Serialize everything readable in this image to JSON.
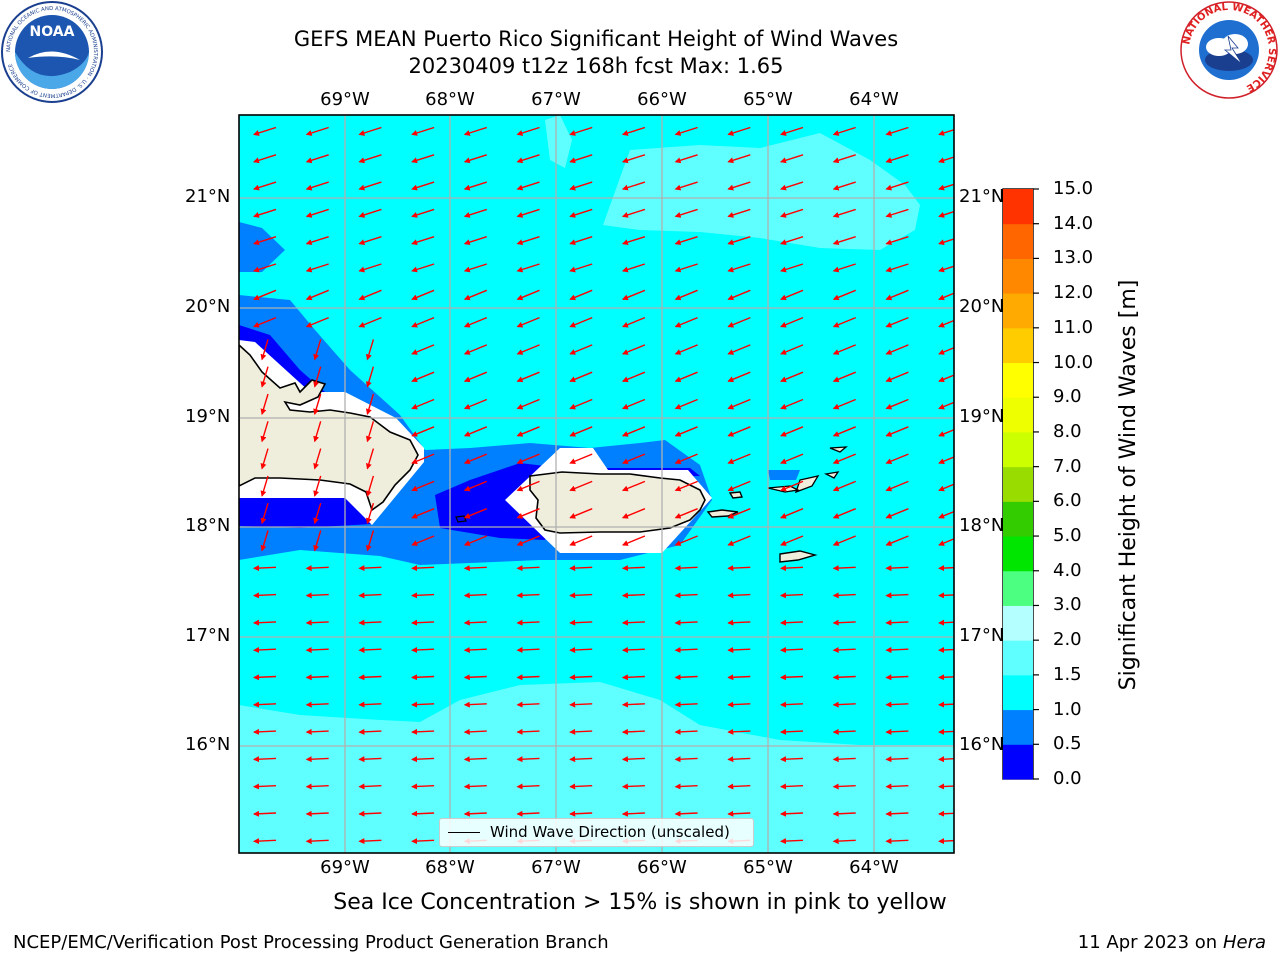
{
  "header": {
    "title_line1": "GEFS MEAN Puerto Rico Significant Height of Wind Waves",
    "title_line2": "20230409 t12z 168h fcst   Max: 1.65",
    "left_logo": "NOAA",
    "left_logo_ring": "NATIONAL OCEANIC AND ATMOSPHERIC ADMINISTRATION · U.S. DEPARTMENT OF COMMERCE",
    "right_logo_ring": "NATIONAL WEATHER SERVICE"
  },
  "map": {
    "lon_labels": [
      "69°W",
      "68°W",
      "67°W",
      "66°W",
      "65°W",
      "64°W"
    ],
    "lat_labels": [
      "21°N",
      "20°N",
      "19°N",
      "18°N",
      "17°N",
      "16°N"
    ],
    "wave_direction": "westward (from the east)",
    "colors": {
      "ocean_main": "#00ffff",
      "land": "#efeddc",
      "arrow": "#ff0000",
      "grid": "#b0b0b0"
    }
  },
  "colorbar": {
    "title": "Significant Height of Wind Waves [m]",
    "tick_labels": [
      "0.0",
      "0.5",
      "1.0",
      "1.5",
      "2.0",
      "3.0",
      "4.0",
      "5.0",
      "6.0",
      "7.0",
      "8.0",
      "9.0",
      "10.0",
      "11.0",
      "12.0",
      "13.0",
      "14.0",
      "15.0"
    ],
    "colors": [
      "#0000ff",
      "#0080ff",
      "#00ffff",
      "#60ffff",
      "#b4ffff",
      "#4dff80",
      "#00e600",
      "#33cc00",
      "#99dd00",
      "#ccff00",
      "#eeff00",
      "#ffff00",
      "#ffcc00",
      "#ffaa00",
      "#ff8800",
      "#ff6600",
      "#ff3300"
    ]
  },
  "legend": {
    "label": "Wind Wave Direction (unscaled)"
  },
  "footer": {
    "note": "Sea Ice Concentration > 15% is shown in pink to yellow",
    "left": "NCEP/EMC/Verification Post Processing Product Generation Branch",
    "date": "11 Apr 2023 on",
    "system": "Hera"
  }
}
